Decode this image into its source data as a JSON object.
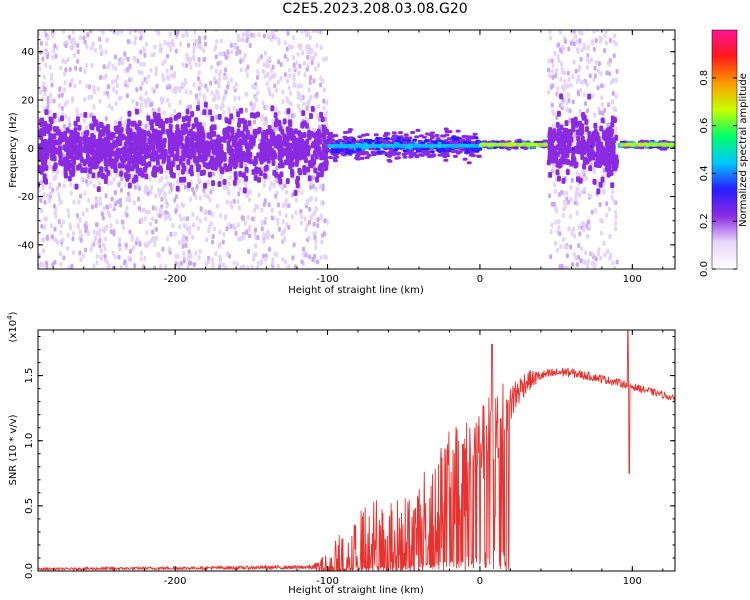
{
  "title": "C2E5.2023.208.03.08.G20",
  "chart_data": [
    {
      "type": "heatmap",
      "xlabel": "Height of straight line (km)",
      "ylabel": "Frequency (Hz)",
      "xlim": [
        -290,
        128
      ],
      "ylim": [
        -50,
        49
      ],
      "x_ticks": [
        -200,
        -100,
        0,
        100
      ],
      "y_ticks": [
        -40,
        -20,
        0,
        20,
        40
      ],
      "colorbar": {
        "label": "Normalized spectral amplitude",
        "range": [
          0.0,
          1.0
        ],
        "ticks": [
          0.0,
          0.2,
          0.4,
          0.6,
          0.8
        ],
        "colors": [
          "#ffffff",
          "#e8d8fa",
          "#8a2be2",
          "#2a1cff",
          "#00c8ff",
          "#00ff66",
          "#c8ff00",
          "#ff9a00",
          "#ff1a1a",
          "#ff1493"
        ]
      },
      "bands": [
        {
          "x_range": [
            -290,
            -100
          ],
          "center_hz": 0,
          "core_half_width_hz": 10,
          "peak_amplitude": 0.25
        },
        {
          "x_range": [
            -100,
            0
          ],
          "center_hz": 1,
          "core_half_width_hz": 4,
          "peak_amplitude": 0.55
        },
        {
          "x_range": [
            0,
            45
          ],
          "center_hz": 1.5,
          "core_half_width_hz": 1,
          "peak_amplitude": 0.9
        },
        {
          "x_range": [
            45,
            90
          ],
          "center_hz": 0,
          "core_half_width_hz": 10,
          "peak_amplitude": 0.3
        },
        {
          "x_range": [
            92,
            128
          ],
          "center_hz": 1.5,
          "core_half_width_hz": 1,
          "peak_amplitude": 0.85
        }
      ]
    },
    {
      "type": "line",
      "xlabel": "Height of straight line (km)",
      "ylabel": "SNR (10 * v/v)",
      "multiplier": "(x10",
      "multiplier_exp": "4",
      "multiplier_close": ")",
      "xlim": [
        -290,
        128
      ],
      "ylim": [
        0,
        18500
      ],
      "x_ticks": [
        -200,
        -100,
        0,
        100
      ],
      "y_ticks": [
        0,
        5000,
        10000,
        15000
      ],
      "y_tick_labels": [
        "0.0",
        "0.5",
        "1.0",
        "1.5"
      ],
      "color": "#e8322f",
      "profile": [
        [
          -290,
          150
        ],
        [
          -100,
          300
        ],
        [
          -85,
          1500
        ],
        [
          -70,
          3000
        ],
        [
          -60,
          2500
        ],
        [
          -45,
          3000
        ],
        [
          -30,
          5000
        ],
        [
          -20,
          6500
        ],
        [
          -10,
          8000
        ],
        [
          0,
          9500
        ],
        [
          10,
          11000
        ],
        [
          20,
          13000
        ],
        [
          30,
          14500
        ],
        [
          40,
          15000
        ],
        [
          55,
          15300
        ],
        [
          70,
          15000
        ],
        [
          90,
          14500
        ],
        [
          105,
          14000
        ],
        [
          118,
          13600
        ],
        [
          128,
          13200
        ]
      ],
      "noise_amplitude": [
        [
          -290,
          80
        ],
        [
          -110,
          150
        ],
        [
          -90,
          2200
        ],
        [
          -75,
          2800
        ],
        [
          -60,
          3000
        ],
        [
          -45,
          3200
        ],
        [
          -30,
          4000
        ],
        [
          -15,
          4500
        ],
        [
          0,
          3000
        ],
        [
          10,
          3200
        ],
        [
          25,
          1200
        ],
        [
          40,
          400
        ],
        [
          90,
          300
        ],
        [
          128,
          250
        ]
      ],
      "spikes": [
        [
          8,
          17400
        ],
        [
          10,
          4200
        ],
        [
          97,
          18500
        ],
        [
          98,
          7500
        ]
      ]
    }
  ]
}
